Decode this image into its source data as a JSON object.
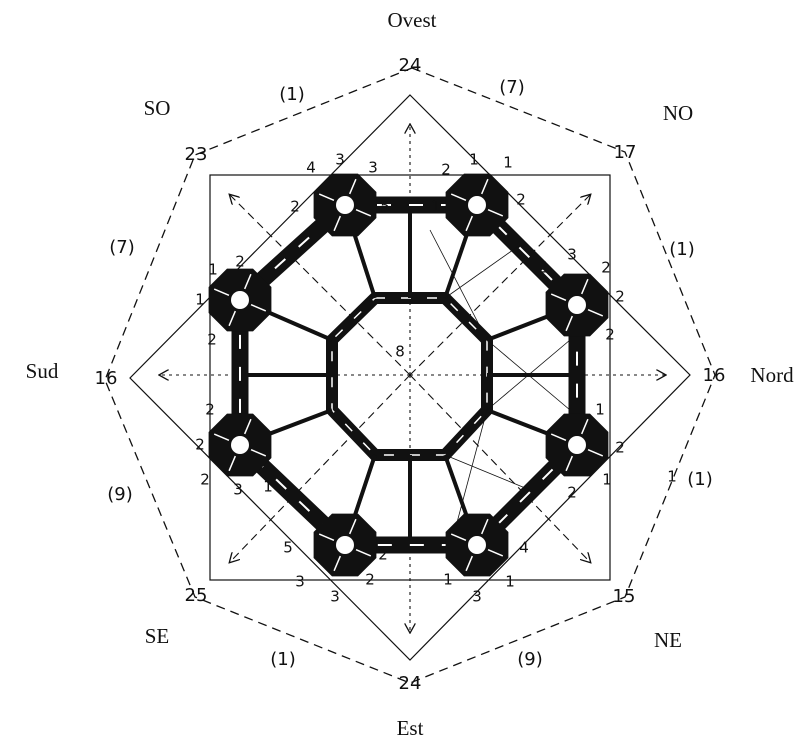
{
  "directions": [
    "Ovest",
    "NO",
    "Nord",
    "NE",
    "Est",
    "SE",
    "Sud",
    "SO"
  ],
  "vertex_numbers": [
    "24",
    "17",
    "16",
    "15",
    "24",
    "25",
    "16",
    "23"
  ],
  "edge_numbers": [
    "(7)",
    "(1)",
    "(1)",
    "(9)",
    "(1)",
    "(9)",
    "(7)",
    "(1)"
  ],
  "center_number": "8",
  "plan_numbers": [
    "4",
    "3",
    "3",
    "2",
    "5",
    "2",
    "1",
    "1",
    "1",
    "2",
    "1",
    "3",
    "2",
    "2",
    "2",
    "1",
    "2",
    "1",
    "2",
    "1",
    "4",
    "1",
    "3",
    "1",
    "5",
    "3",
    "3",
    "2",
    "2",
    "2",
    "2",
    "2",
    "3",
    "1",
    "1",
    "2",
    "1",
    "2"
  ]
}
